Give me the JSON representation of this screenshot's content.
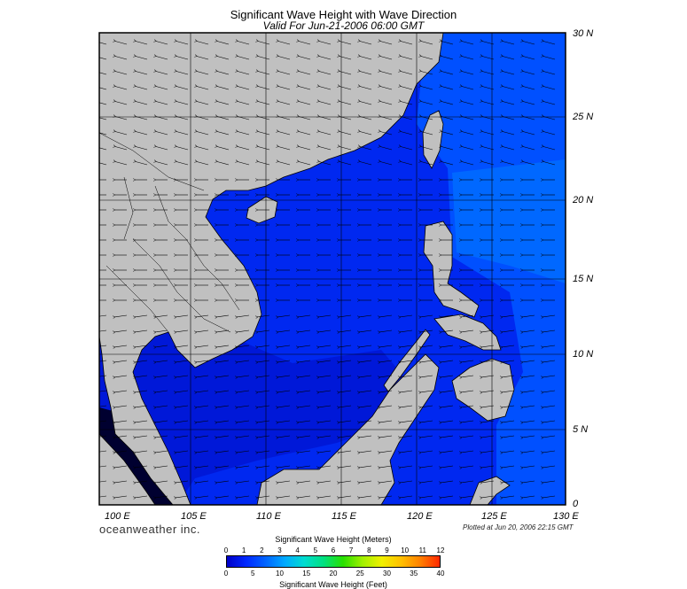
{
  "title": "Significant Wave Height with Wave Direction",
  "subtitle": "Valid For Jun-21-2006 06:00 GMT",
  "lat_labels": [
    "30 N",
    "25 N",
    "20 N",
    "15 N",
    "10 N",
    "5 N",
    "0"
  ],
  "lon_labels": [
    "100 E",
    "105 E",
    "110 E",
    "115 E",
    "120 E",
    "125 E",
    "130 E"
  ],
  "brand": "oceanweather inc.",
  "plotted": "Plotted at Jun 20, 2006 22:15 GMT",
  "colorbar": {
    "title_top": "Significant Wave Height (Meters)",
    "title_bottom": "Significant Wave Height (Feet)",
    "meters_ticks": [
      "0",
      "1",
      "2",
      "3",
      "4",
      "5",
      "6",
      "7",
      "8",
      "9",
      "10",
      "11",
      "12"
    ],
    "feet_ticks": [
      "0",
      "5",
      "10",
      "15",
      "20",
      "25",
      "30",
      "35",
      "40"
    ],
    "colors": [
      "#0000c8",
      "#0028ff",
      "#0064ff",
      "#00aaff",
      "#00dcd0",
      "#00e080",
      "#28e000",
      "#a0f000",
      "#f0f000",
      "#ffc000",
      "#ff8000",
      "#ff2800"
    ]
  },
  "colors": {
    "land": "#c0c0c0",
    "sea_deep": "#0010d8",
    "sea_mid": "#0030f0",
    "sea_light": "#0058ff"
  }
}
